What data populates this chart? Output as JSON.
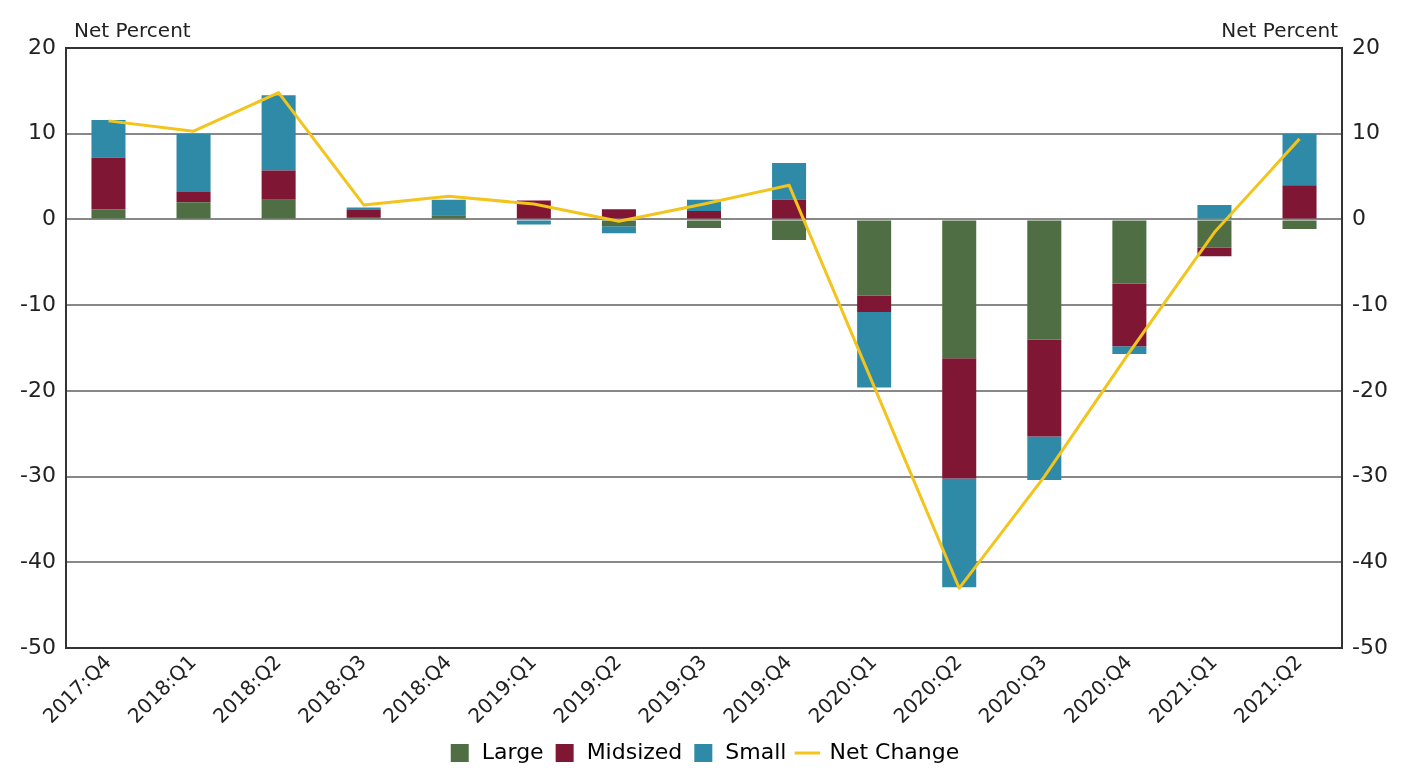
{
  "chart_data": {
    "type": "bar",
    "stacked": true,
    "ylabel": "Net Percent",
    "y2label": "Net Percent",
    "categories": [
      "2017:Q4",
      "2018:Q1",
      "2018:Q2",
      "2018:Q3",
      "2018:Q4",
      "2019:Q1",
      "2019:Q2",
      "2019:Q3",
      "2019:Q4",
      "2020:Q1",
      "2020:Q2",
      "2020:Q3",
      "2020:Q4",
      "2021:Q1",
      "2021:Q2"
    ],
    "series": [
      {
        "name": "Large",
        "color": "#4f6e43",
        "values": [
          1.2,
          2,
          2.3,
          0.3,
          0.5,
          0,
          -0.8,
          -1,
          -2.4,
          -8.9,
          -16.2,
          -14,
          -7.5,
          -3.3,
          -1.1
        ]
      },
      {
        "name": "Midsized",
        "color": "#7f1734",
        "values": [
          6,
          1.2,
          3.4,
          0.8,
          0,
          2.2,
          1.2,
          1,
          2.3,
          -1.9,
          -14,
          -11.3,
          -7.3,
          -1,
          4
        ]
      },
      {
        "name": "Small",
        "color": "#2e8aa6",
        "values": [
          4.4,
          6.8,
          8.8,
          0.3,
          1.8,
          -0.6,
          -0.8,
          1.3,
          4.3,
          -8.8,
          -12.7,
          -5.1,
          -0.9,
          1.7,
          6
        ]
      },
      {
        "name": "Net Change",
        "type": "line",
        "color": "#f2c41c",
        "values": [
          11.5,
          10.3,
          14.8,
          1.7,
          2.7,
          1.8,
          -0.2,
          1.8,
          4,
          -19.5,
          -43,
          -30,
          -15.5,
          -1.5,
          9.4
        ]
      }
    ],
    "ylim": [
      -50,
      20
    ],
    "yticks": [
      -50,
      -40,
      -30,
      -20,
      -10,
      0,
      10,
      20
    ],
    "y2lim": [
      -50,
      20
    ],
    "y2ticks": [
      -50,
      -40,
      -30,
      -20,
      -10,
      0,
      10,
      20
    ],
    "grid": "y",
    "legend": "bottom",
    "marker": "none"
  }
}
